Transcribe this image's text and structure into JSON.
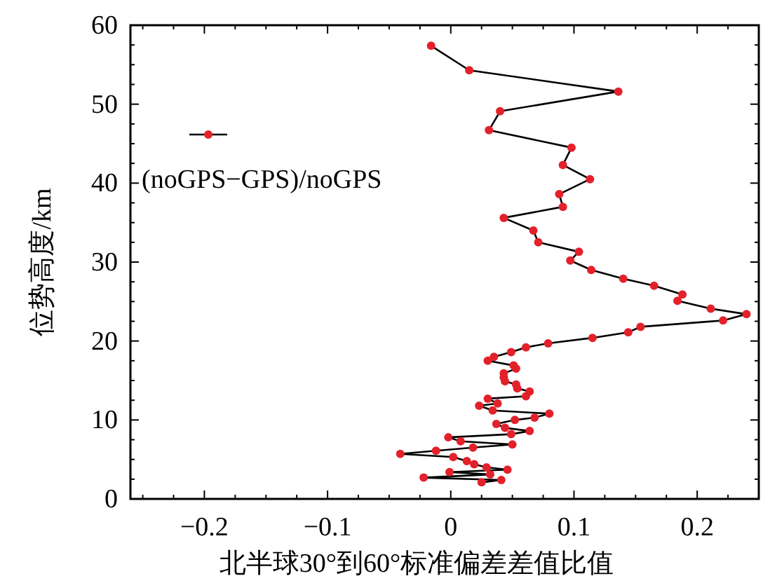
{
  "chart_data": {
    "type": "line",
    "xlabel": "北半球30°到60°标准偏差差值比值",
    "ylabel": "位势高度/km",
    "legend": "top left",
    "grid": false,
    "marker": "circle",
    "line_style": "solid",
    "xlim": [
      -0.26,
      0.25
    ],
    "ylim": [
      0,
      60
    ],
    "xticks": [
      {
        "value": -0.25,
        "label": null
      },
      {
        "value": -0.225,
        "label": null
      },
      {
        "value": -0.2,
        "label": "−0.2"
      },
      {
        "value": -0.175,
        "label": null
      },
      {
        "value": -0.15,
        "label": null
      },
      {
        "value": -0.125,
        "label": null
      },
      {
        "value": -0.1,
        "label": "−0.1"
      },
      {
        "value": -0.075,
        "label": null
      },
      {
        "value": -0.05,
        "label": null
      },
      {
        "value": -0.025,
        "label": null
      },
      0,
      {
        "value": 0.025,
        "label": null
      },
      {
        "value": 0.05,
        "label": null
      },
      {
        "value": 0.075,
        "label": null
      },
      0.1,
      {
        "value": 0.125,
        "label": null
      },
      {
        "value": 0.15,
        "label": null
      },
      {
        "value": 0.175,
        "label": null
      },
      0.2,
      {
        "value": 0.225,
        "label": null
      }
    ],
    "yticks": [
      0,
      {
        "value": 2.5,
        "label": null
      },
      {
        "value": 5,
        "label": null
      },
      {
        "value": 7.5,
        "label": null
      },
      10,
      {
        "value": 12.5,
        "label": null
      },
      {
        "value": 15,
        "label": null
      },
      {
        "value": 17.5,
        "label": null
      },
      20,
      {
        "value": 22.5,
        "label": null
      },
      {
        "value": 25,
        "label": null
      },
      {
        "value": 27.5,
        "label": null
      },
      30,
      {
        "value": 32.5,
        "label": null
      },
      {
        "value": 35,
        "label": null
      },
      {
        "value": 37.5,
        "label": null
      },
      40,
      {
        "value": 42.5,
        "label": null
      },
      {
        "value": 45,
        "label": null
      },
      {
        "value": 47.5,
        "label": null
      },
      50,
      {
        "value": 52.5,
        "label": null
      },
      {
        "value": 55,
        "label": null
      },
      {
        "value": 57.5,
        "label": null
      },
      60
    ],
    "series": [
      {
        "name": "(noGPS−GPS)/noGPS",
        "color": "#e3212b",
        "x": [
          0.025,
          0.041,
          -0.022,
          0.032,
          -0.001,
          0.046,
          0.029,
          0.019,
          0.013,
          0.002,
          -0.041,
          -0.012,
          0.018,
          0.05,
          0.008,
          -0.002,
          0.049,
          0.064,
          0.044,
          0.037,
          0.052,
          0.068,
          0.08,
          0.034,
          0.023,
          0.038,
          0.03,
          0.061,
          0.064,
          0.054,
          0.053,
          0.044,
          0.043,
          0.043,
          0.053,
          0.051,
          0.03,
          0.035,
          0.049,
          0.061,
          0.079,
          0.115,
          0.144,
          0.154,
          0.221,
          0.24,
          0.211,
          0.184,
          0.188,
          0.165,
          0.14,
          0.114,
          0.097,
          0.104,
          0.071,
          0.067,
          0.043,
          0.091,
          0.088,
          0.113,
          0.091,
          0.098,
          0.031,
          0.04,
          0.136,
          0.015,
          -0.016
        ],
        "values": [
          2.1,
          2.4,
          2.7,
          3.1,
          3.4,
          3.7,
          4.0,
          4.4,
          4.8,
          5.3,
          5.7,
          6.1,
          6.5,
          6.9,
          7.3,
          7.8,
          8.2,
          8.6,
          9.0,
          9.5,
          10.0,
          10.3,
          10.8,
          11.2,
          11.8,
          12.1,
          12.7,
          13.0,
          13.6,
          14.0,
          14.5,
          14.9,
          15.4,
          15.9,
          16.5,
          16.9,
          17.5,
          18.0,
          18.6,
          19.2,
          19.7,
          20.4,
          21.1,
          21.8,
          22.6,
          23.4,
          24.1,
          25.1,
          25.9,
          27.0,
          27.9,
          29.0,
          30.2,
          31.3,
          32.5,
          34.0,
          35.6,
          37.0,
          38.6,
          40.5,
          42.3,
          44.5,
          46.7,
          49.1,
          51.6,
          54.3,
          57.4
        ]
      }
    ]
  }
}
